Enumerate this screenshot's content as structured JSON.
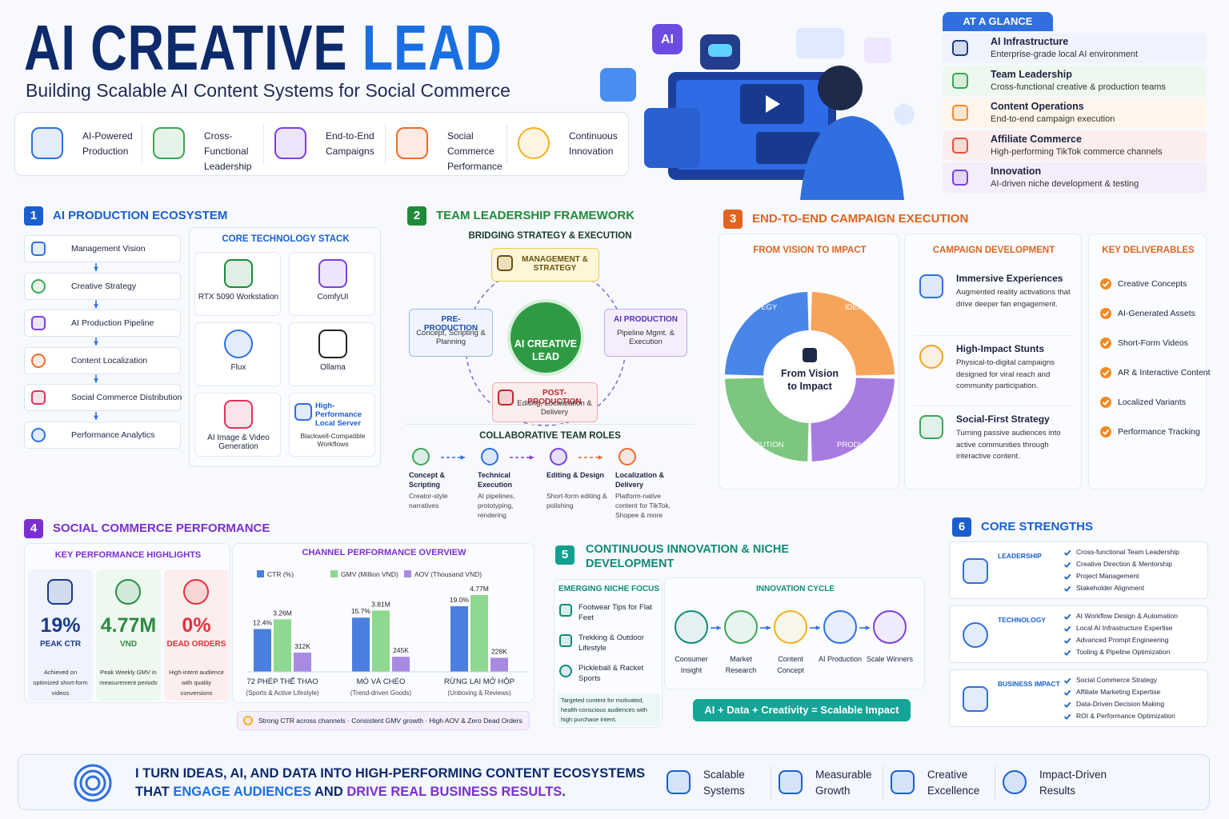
{
  "header": {
    "title_a": "AI CREATIVE",
    "title_b": "LEAD",
    "subtitle": "Building Scalable AI Content Systems for Social Commerce"
  },
  "hero": {
    "badge": "AI"
  },
  "pillars": [
    "AI-Powered Production",
    "Cross-Functional Leadership",
    "End-to-End Campaigns",
    "Social Commerce Performance",
    "Continuous Innovation"
  ],
  "glance": {
    "title": "AT A GLANCE",
    "items": [
      {
        "title": "AI Infrastructure",
        "desc": "Enterprise-grade local AI environment"
      },
      {
        "title": "Team Leadership",
        "desc": "Cross-functional creative & production teams"
      },
      {
        "title": "Content Operations",
        "desc": "End-to-end campaign execution"
      },
      {
        "title": "Affiliate Commerce",
        "desc": "High-performing TikTok commerce channels"
      },
      {
        "title": "Innovation",
        "desc": "AI-driven niche development & testing"
      }
    ]
  },
  "s1": {
    "number": "1",
    "title": "AI PRODUCTION ECOSYSTEM",
    "steps": [
      "Management Vision",
      "Creative Strategy",
      "AI Production Pipeline",
      "Content Localization",
      "Social Commerce Distribution",
      "Performance Analytics"
    ],
    "stack_title": "CORE TECHNOLOGY STACK",
    "stack": [
      {
        "name": "RTX 5090 Workstation"
      },
      {
        "name": "ComfyUI"
      },
      {
        "name": "Flux"
      },
      {
        "name": "Ollama"
      },
      {
        "name": "AI Image & Video Generation"
      },
      {
        "name": "High-Performance Local Server",
        "desc": "Blackwell-Compatible Workflows"
      }
    ]
  },
  "s2": {
    "number": "2",
    "title": "TEAM LEADERSHIP FRAMEWORK",
    "subtitle": "BRIDGING STRATEGY & EXECUTION",
    "center": "AI CREATIVE LEAD",
    "nodes": [
      {
        "title": "MANAGEMENT & STRATEGY"
      },
      {
        "title": "PRE-PRODUCTION",
        "desc": "Concept, Scripting & Planning"
      },
      {
        "title": "AI PRODUCTION",
        "desc": "Pipeline Mgmt. & Execution"
      },
      {
        "title": "POST-PRODUCTION",
        "desc": "Editing, Localization & Delivery"
      }
    ],
    "roles_title": "COLLABORATIVE TEAM ROLES",
    "roles": [
      {
        "title": "Concept & Scripting",
        "desc": "Creator-style narratives"
      },
      {
        "title": "Technical Execution",
        "desc": "AI pipelines, prototyping, rendering"
      },
      {
        "title": "Editing & Design",
        "desc": "Short-form editing & polishing"
      },
      {
        "title": "Localization & Delivery",
        "desc": "Platform-native content for TikTok, Shopee & more"
      }
    ]
  },
  "s3": {
    "number": "3",
    "title": "END-TO-END CAMPAIGN EXECUTION",
    "cycle_title": "FROM VISION TO IMPACT",
    "cycle": [
      "STRATEGY",
      "IDEATION",
      "PRODUCTION",
      "DISTRIBUTION"
    ],
    "center": "From Vision to Impact",
    "dev_title": "CAMPAIGN DEVELOPMENT",
    "dev": [
      {
        "title": "Immersive Experiences",
        "desc": "Augmented reality activations that drive deeper fan engagement."
      },
      {
        "title": "High-Impact Stunts",
        "desc": "Physical-to-digital campaigns designed for viral reach and community participation."
      },
      {
        "title": "Social-First Strategy",
        "desc": "Turning passive audiences into active communities through interactive content."
      }
    ],
    "deliv_title": "KEY DELIVERABLES",
    "deliverables": [
      "Creative Concepts",
      "AI-Generated Assets",
      "Short-Form Videos",
      "AR & Interactive Content",
      "Localized Variants",
      "Performance Tracking"
    ]
  },
  "s4": {
    "number": "4",
    "title": "SOCIAL COMMERCE PERFORMANCE",
    "highlights_title": "KEY PERFORMANCE HIGHLIGHTS",
    "highlights": [
      {
        "value": "19%",
        "label": "PEAK CTR",
        "desc": "Achieved on optimized short-form videos"
      },
      {
        "value": "4.77M",
        "label": "VND",
        "desc": "Peak Weekly GMV in measurement periods"
      },
      {
        "value": "0%",
        "label": "DEAD ORDERS",
        "desc": "High-intent audience with quality conversions"
      }
    ],
    "note": "Strong CTR across channels · Consistent GMV growth · High AOV & Zero Dead Orders"
  },
  "chart_data": {
    "type": "bar",
    "title": "CHANNEL PERFORMANCE OVERVIEW",
    "categories": [
      "72 PHÉP THẾ THAO",
      "MÒ VÀ CHÉO",
      "RỪNG LẠI MỞ HỘP"
    ],
    "category_notes": [
      "(Sports & Active Lifestyle)",
      "(Trend-driven Goods)",
      "(Unboxing & Reviews)"
    ],
    "series": [
      {
        "name": "CTR (%)",
        "color": "#4a7fe0",
        "values": [
          12.4,
          15.7,
          19.0
        ],
        "value_labels": [
          "12.4%",
          "15.7%",
          "19.0%"
        ]
      },
      {
        "name": "GMV (Million VND)",
        "color": "#8fd88f",
        "values": [
          3.26,
          3.81,
          4.77
        ],
        "value_labels": [
          "3.26M",
          "3.81M",
          "4.77M"
        ]
      },
      {
        "name": "AOV (Thousand VND)",
        "color": "#a98ae3",
        "values": [
          312,
          245,
          228
        ],
        "value_labels": [
          "312K",
          "245K",
          "228K"
        ]
      }
    ]
  },
  "s5": {
    "number": "5",
    "title": "CONTINUOUS INNOVATION & NICHE DEVELOPMENT",
    "niche_title": "EMERGING NICHE FOCUS",
    "niches": [
      "Footwear Tips for Flat Feet",
      "Trekking & Outdoor Lifestyle",
      "Pickleball & Racket Sports"
    ],
    "note": "Targeted content for motivated, health-conscious audiences with high purchase intent.",
    "cycle_title": "INNOVATION CYCLE",
    "cycle": [
      "Consumer Insight",
      "Market Research",
      "Content Concept",
      "AI Production",
      "Scale Winners"
    ],
    "formula": "AI + Data + Creativity = Scalable Impact"
  },
  "s6": {
    "number": "6",
    "title": "CORE STRENGTHS",
    "groups": [
      {
        "name": "LEADERSHIP",
        "items": [
          "Cross-functional Team Leadership",
          "Creative Direction & Mentorship",
          "Project Management",
          "Stakeholder Alignment"
        ]
      },
      {
        "name": "TECHNOLOGY",
        "items": [
          "AI Workflow Design & Automation",
          "Local AI Infrastructure Expertise",
          "Advanced Prompt Engineering",
          "Tooling & Pipeline Optimization"
        ]
      },
      {
        "name": "BUSINESS IMPACT",
        "items": [
          "Social Commerce Strategy",
          "Affiliate Marketing Expertise",
          "Data-Driven Decision Making",
          "ROI & Performance Optimization"
        ]
      }
    ]
  },
  "footer": {
    "statement": [
      "I TURN IDEAS, AI, AND DATA INTO HIGH-PERFORMING CONTENT ECOSYSTEMS THAT ",
      "ENGAGE AUDIENCES",
      " AND ",
      "DRIVE REAL BUSINESS RESULTS",
      "."
    ],
    "badges": [
      "Scalable Systems",
      "Measurable Growth",
      "Creative Excellence",
      "Impact-Driven Results"
    ]
  }
}
